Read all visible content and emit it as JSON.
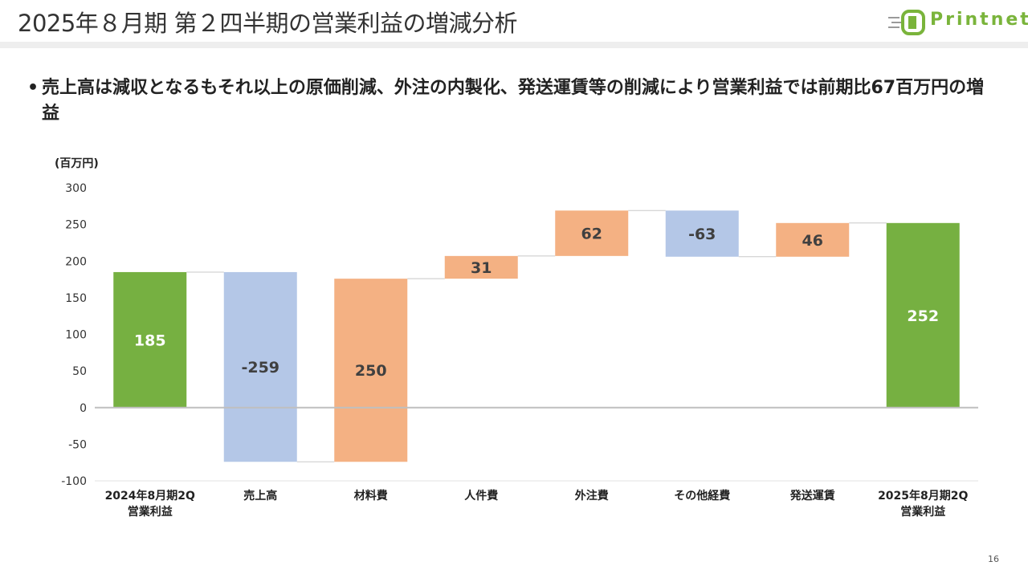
{
  "header": {
    "title": "2025年８月期 第２四半期の営業利益の増減分析",
    "logo_text": "Printnet"
  },
  "bullet": {
    "marker": "•",
    "text": "売上高は減収となるもそれ以上の原価削減、外注の内製化、発送運賃等の削減により営業利益では前期比67百万円の増益"
  },
  "page_number": "16",
  "colors": {
    "total": "#76b041",
    "decrease": "#b4c7e7",
    "increase": "#f4b183",
    "connector": "#c8c8c8",
    "axis": "#bfbfbf"
  },
  "chart_data": {
    "type": "bar",
    "subtype": "waterfall",
    "unit_label": "(百万円)",
    "ylim": [
      -100,
      300
    ],
    "y_ticks": [
      300,
      250,
      200,
      150,
      100,
      50,
      0,
      -50,
      -100
    ],
    "grid": false,
    "categories": [
      [
        "2024年8月期2Q",
        "営業利益"
      ],
      [
        "売上高"
      ],
      [
        "材料費"
      ],
      [
        "人件費"
      ],
      [
        "外注費"
      ],
      [
        "その他経費"
      ],
      [
        "発送運賃"
      ],
      [
        "2025年8月期2Q",
        "営業利益"
      ]
    ],
    "bars": [
      {
        "start": 0,
        "end": 185,
        "label": "185",
        "kind": "total"
      },
      {
        "start": 185,
        "end": -74,
        "label": "-259",
        "kind": "decrease"
      },
      {
        "start": -74,
        "end": 176,
        "label": "250",
        "kind": "increase"
      },
      {
        "start": 176,
        "end": 207,
        "label": "31",
        "kind": "increase"
      },
      {
        "start": 207,
        "end": 269,
        "label": "62",
        "kind": "increase"
      },
      {
        "start": 269,
        "end": 206,
        "label": "-63",
        "kind": "decrease"
      },
      {
        "start": 206,
        "end": 252,
        "label": "46",
        "kind": "increase"
      },
      {
        "start": 0,
        "end": 252,
        "label": "252",
        "kind": "total"
      }
    ]
  }
}
